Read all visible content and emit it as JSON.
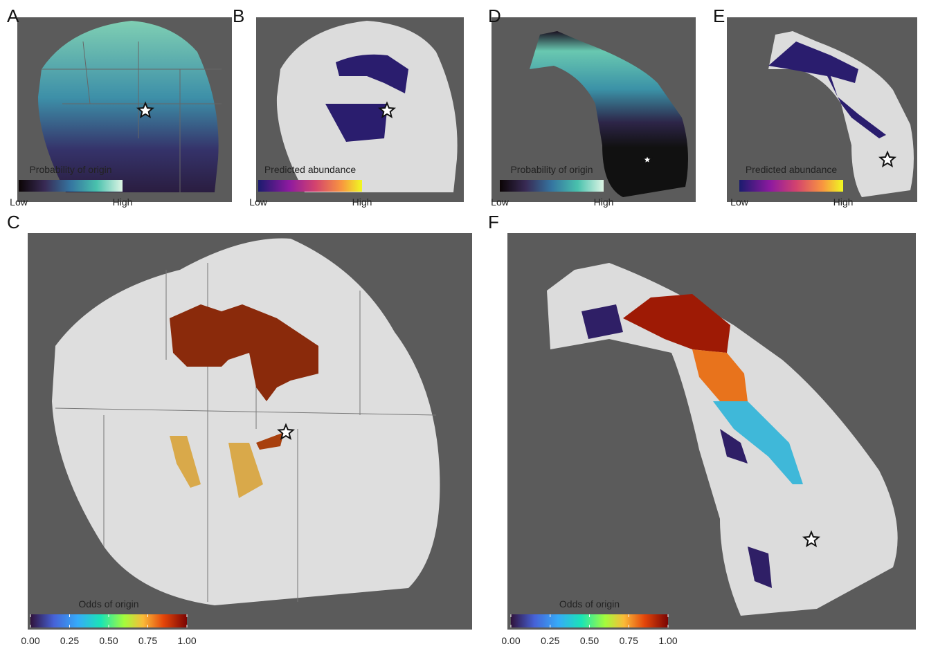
{
  "panels": [
    {
      "letter": "A",
      "legend": {
        "title": "Probability of origin",
        "low": "Low",
        "high": "High"
      }
    },
    {
      "letter": "B",
      "legend": {
        "title": "Predicted abundance",
        "low": "Low",
        "high": "High"
      }
    },
    {
      "letter": "D",
      "legend": {
        "title": "Probability of origin",
        "low": "Low",
        "high": "High"
      }
    },
    {
      "letter": "E",
      "legend": {
        "title": "Predicted abundance",
        "low": "Low",
        "high": "High"
      }
    },
    {
      "letter": "C",
      "legend": {
        "title": "Odds of origin",
        "ticks": [
          {
            "value": 0,
            "label": "0.00"
          },
          {
            "value": 0.25,
            "label": "0.25"
          },
          {
            "value": 0.5,
            "label": "0.50"
          },
          {
            "value": 0.75,
            "label": "0.75"
          },
          {
            "value": 1,
            "label": "1.00"
          }
        ]
      }
    },
    {
      "letter": "F",
      "legend": {
        "title": "Odds of origin",
        "ticks": [
          {
            "value": 0,
            "label": "0.00"
          },
          {
            "value": 0.25,
            "label": "0.25"
          },
          {
            "value": 0.5,
            "label": "0.50"
          },
          {
            "value": 0.75,
            "label": "0.75"
          },
          {
            "value": 1,
            "label": "1.00"
          }
        ]
      }
    }
  ]
}
